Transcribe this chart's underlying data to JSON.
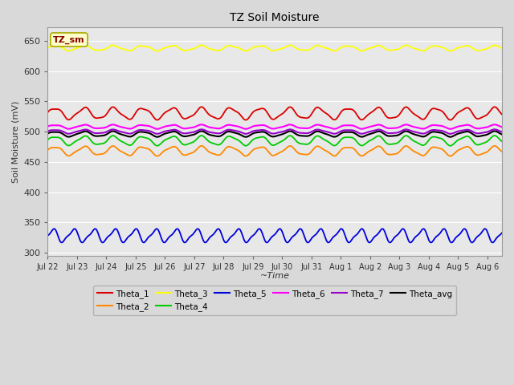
{
  "title": "TZ Soil Moisture",
  "xlabel": "~Time",
  "ylabel": "Soil Moisture (mV)",
  "ylim": [
    295,
    672
  ],
  "yticks": [
    300,
    350,
    400,
    450,
    500,
    550,
    600,
    650
  ],
  "bg_color": "#d9d9d9",
  "plot_bg_color": "#e8e8e8",
  "alt_band_color": "#d0d0d0",
  "grid_color": "#ffffff",
  "series": {
    "Theta_1": {
      "color": "#dd0000",
      "base": 530,
      "amp": 9,
      "period": 1.0
    },
    "Theta_2": {
      "color": "#ff8800",
      "base": 468,
      "amp": 7,
      "period": 1.0
    },
    "Theta_3": {
      "color": "#ffff00",
      "base": 638,
      "amp": 4,
      "period": 1.0
    },
    "Theta_4": {
      "color": "#00cc00",
      "base": 485,
      "amp": 7,
      "period": 1.0
    },
    "Theta_5": {
      "color": "#0000dd",
      "base": 328,
      "amp": 10,
      "period": 0.7
    },
    "Theta_6": {
      "color": "#ff00ff",
      "base": 508,
      "amp": 3,
      "period": 1.0
    },
    "Theta_7": {
      "color": "#9900cc",
      "base": 500,
      "amp": 3,
      "period": 1.0
    },
    "Theta_avg": {
      "color": "#000000",
      "base": 496,
      "amp": 4,
      "period": 1.0
    }
  },
  "n_days": 15.5,
  "n_points": 2000,
  "xtick_labels": [
    "Jul 22",
    "Jul 23",
    "Jul 24",
    "Jul 25",
    "Jul 26",
    "Jul 27",
    "Jul 28",
    "Jul 29",
    "Jul 30",
    "Jul 31",
    "Aug 1",
    "Aug 2",
    "Aug 3",
    "Aug 4",
    "Aug 5",
    "Aug 6"
  ],
  "xtick_positions": [
    0,
    1,
    2,
    3,
    4,
    5,
    6,
    7,
    8,
    9,
    10,
    11,
    12,
    13,
    14,
    15
  ],
  "legend_label": "TZ_sm",
  "legend_box_facecolor": "#ffffcc",
  "legend_box_edgecolor": "#aaaa00",
  "legend_text_color": "#880000"
}
